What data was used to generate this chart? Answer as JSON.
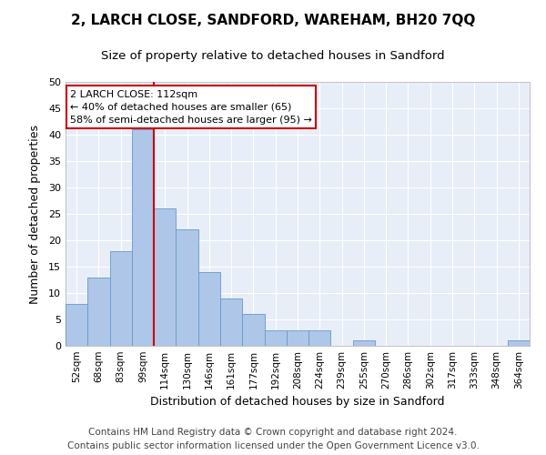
{
  "title": "2, LARCH CLOSE, SANDFORD, WAREHAM, BH20 7QQ",
  "subtitle": "Size of property relative to detached houses in Sandford",
  "xlabel": "Distribution of detached houses by size in Sandford",
  "ylabel": "Number of detached properties",
  "bar_labels": [
    "52sqm",
    "68sqm",
    "83sqm",
    "99sqm",
    "114sqm",
    "130sqm",
    "146sqm",
    "161sqm",
    "177sqm",
    "192sqm",
    "208sqm",
    "224sqm",
    "239sqm",
    "255sqm",
    "270sqm",
    "286sqm",
    "302sqm",
    "317sqm",
    "333sqm",
    "348sqm",
    "364sqm"
  ],
  "bar_values": [
    8,
    13,
    18,
    41,
    26,
    22,
    14,
    9,
    6,
    3,
    3,
    3,
    0,
    1,
    0,
    0,
    0,
    0,
    0,
    0,
    1
  ],
  "bar_color": "#aec6e8",
  "bar_edgecolor": "#6699cc",
  "vline_x_index": 3.5,
  "vline_color": "#cc0000",
  "annotation_text": "2 LARCH CLOSE: 112sqm\n← 40% of detached houses are smaller (65)\n58% of semi-detached houses are larger (95) →",
  "annotation_box_color": "#cc0000",
  "annotation_fill": "#ffffff",
  "ylim": [
    0,
    50
  ],
  "yticks": [
    0,
    5,
    10,
    15,
    20,
    25,
    30,
    35,
    40,
    45,
    50
  ],
  "background_color": "#e8eef7",
  "footer_line1": "Contains HM Land Registry data © Crown copyright and database right 2024.",
  "footer_line2": "Contains public sector information licensed under the Open Government Licence v3.0.",
  "title_fontsize": 11,
  "subtitle_fontsize": 9.5,
  "xlabel_fontsize": 9,
  "ylabel_fontsize": 9,
  "footer_fontsize": 7.5
}
